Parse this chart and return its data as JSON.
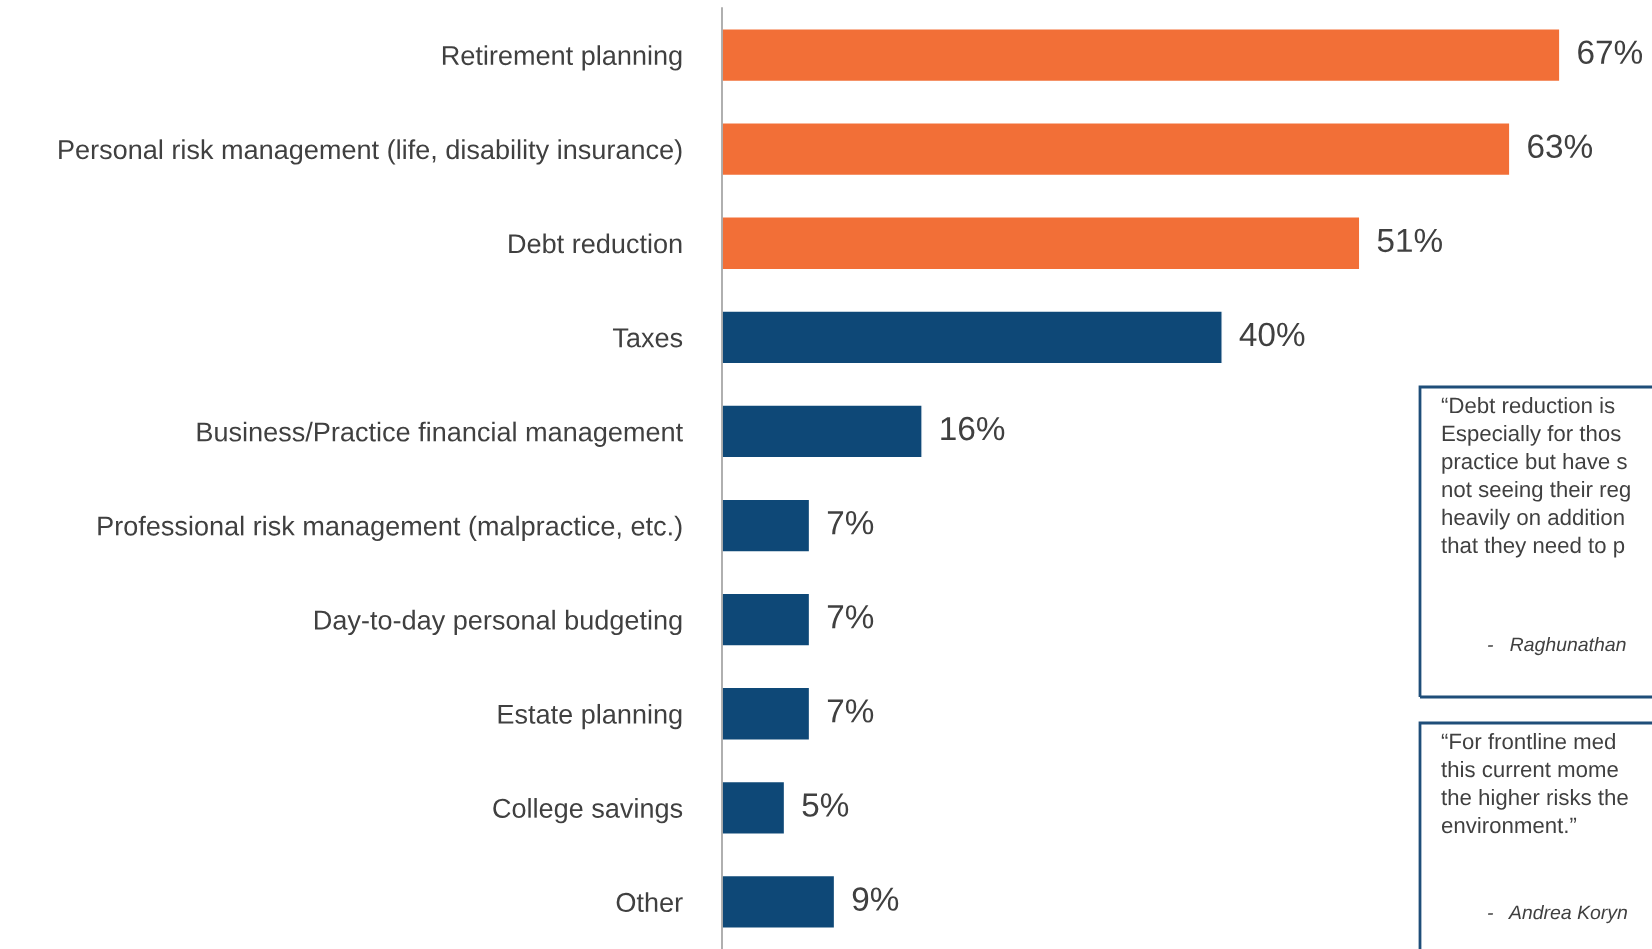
{
  "chart_data": {
    "type": "bar",
    "orientation": "horizontal",
    "categories": [
      "Retirement planning",
      "Personal risk management (life, disability insurance)",
      "Debt reduction",
      "Taxes",
      "Business/Practice financial management",
      "Professional risk management (malpractice, etc.)",
      "Day-to-day personal budgeting",
      "Estate planning",
      "College savings",
      "Other"
    ],
    "values": [
      67,
      63,
      51,
      40,
      16,
      7,
      7,
      7,
      5,
      9
    ],
    "colors": [
      "#f26f37",
      "#f26f37",
      "#f26f37",
      "#0e4877",
      "#0e4877",
      "#0e4877",
      "#0e4877",
      "#0e4877",
      "#0e4877",
      "#0e4877"
    ],
    "value_labels": [
      "67%",
      "63%",
      "51%",
      "40%",
      "16%",
      "7%",
      "7%",
      "7%",
      "5%",
      "9%"
    ],
    "annotations": [
      "“Debt reduction is\nEspecially for thos\npractice but have s\nnot seeing their reg\nheavily on addition\nthat they need to p",
      "-   Raghunathan",
      "“For frontline med\nthis current mome\nthe higher risks the\nenvironment.”",
      "-   Andrea Koryn"
    ],
    "grid": false,
    "legend": false
  }
}
